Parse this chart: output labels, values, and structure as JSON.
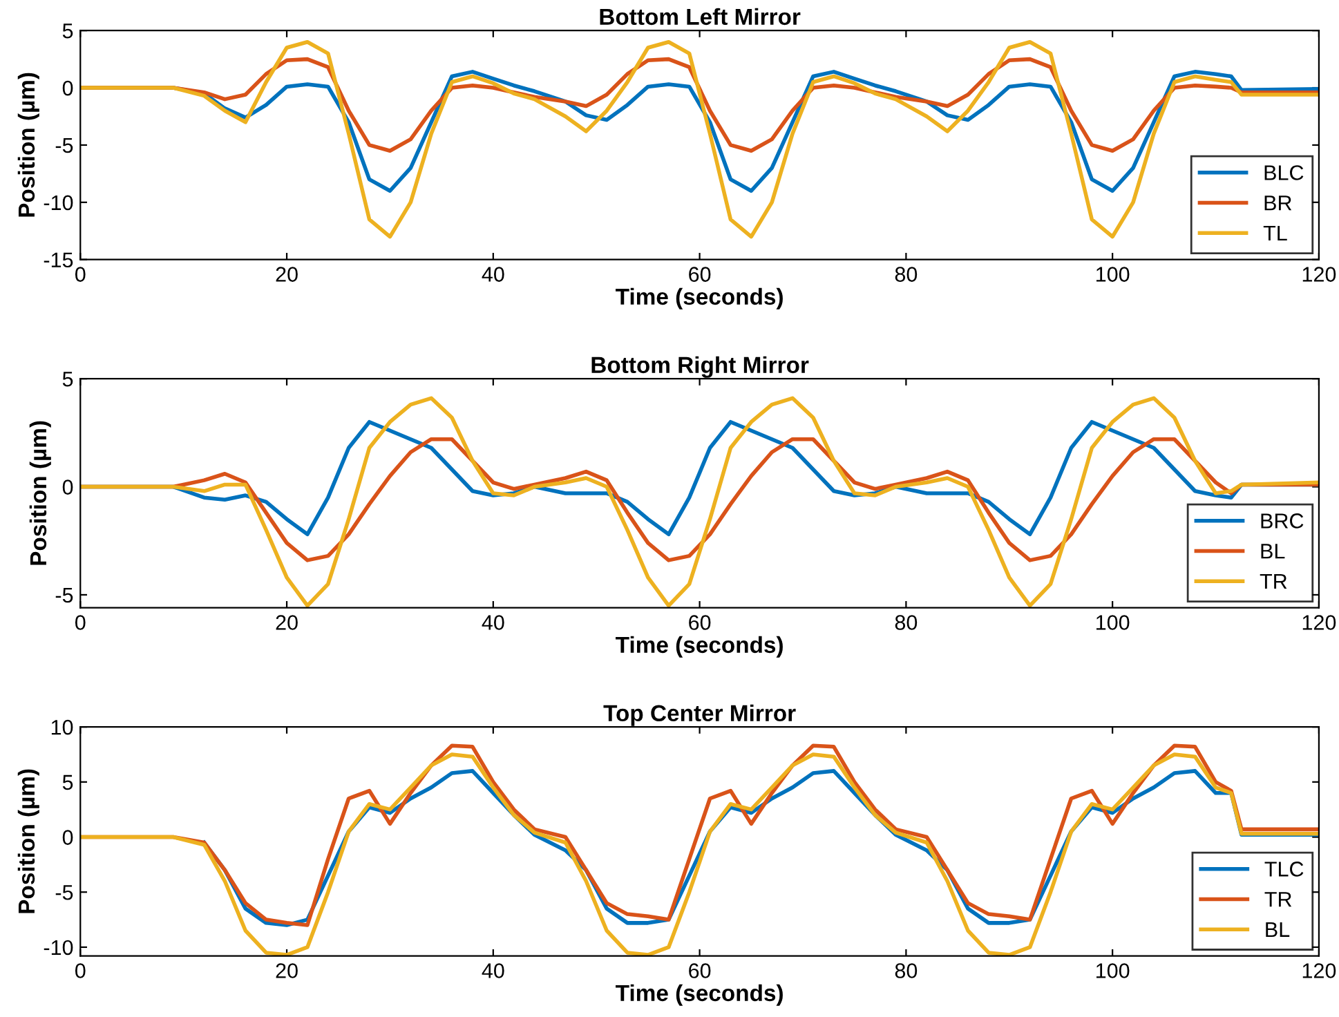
{
  "chart_data": [
    {
      "type": "line",
      "title": "Bottom Left Mirror",
      "xlabel": "Time (seconds)",
      "ylabel": "Position (µm)",
      "xlim": [
        0,
        120
      ],
      "xticks": [
        0,
        20,
        40,
        60,
        80,
        100,
        120
      ],
      "ylim": [
        -15,
        5
      ],
      "yticks": [
        -15,
        -10,
        -5,
        0,
        5
      ],
      "grid": false,
      "legend": "bottom right",
      "x": [
        0,
        9,
        12,
        14,
        16,
        18,
        20,
        22,
        24,
        26,
        28,
        30,
        32,
        34,
        36,
        38,
        40,
        42,
        44,
        47,
        49,
        51,
        53,
        55,
        57,
        59,
        61,
        63,
        65,
        67,
        69,
        71,
        73,
        75,
        77,
        79,
        82,
        84,
        86,
        88,
        90,
        92,
        94,
        96,
        98,
        100,
        102,
        104,
        106,
        108,
        110,
        111.5,
        112.5,
        120
      ],
      "series": [
        {
          "name": "BLC",
          "color": "#0072bd",
          "values": [
            0,
            0,
            -0.5,
            -1.8,
            -2.6,
            -1.5,
            0.1,
            0.3,
            0.1,
            -3,
            -8,
            -9,
            -7,
            -3,
            1,
            1.4,
            0.8,
            0.2,
            -0.3,
            -1.2,
            -2.4,
            -2.8,
            -1.5,
            0.1,
            0.3,
            0.1,
            -3,
            -8,
            -9,
            -7,
            -3,
            1,
            1.4,
            0.8,
            0.2,
            -0.3,
            -1.2,
            -2.4,
            -2.8,
            -1.5,
            0.1,
            0.3,
            0.1,
            -3,
            -8,
            -9,
            -7,
            -3,
            1,
            1.4,
            1.2,
            1.0,
            -0.2,
            -0.1
          ]
        },
        {
          "name": "BR",
          "color": "#d95319",
          "values": [
            0,
            0,
            -0.4,
            -1.0,
            -0.6,
            1.2,
            2.4,
            2.5,
            1.8,
            -2,
            -5,
            -5.5,
            -4.5,
            -2,
            0,
            0.2,
            0,
            -0.4,
            -0.8,
            -1.2,
            -1.6,
            -0.6,
            1.2,
            2.4,
            2.5,
            1.8,
            -2,
            -5,
            -5.5,
            -4.5,
            -2,
            0,
            0.2,
            0,
            -0.4,
            -0.8,
            -1.2,
            -1.6,
            -0.6,
            1.2,
            2.4,
            2.5,
            1.8,
            -2,
            -5,
            -5.5,
            -4.5,
            -2,
            0,
            0.2,
            0.1,
            0,
            -0.4,
            -0.4
          ]
        },
        {
          "name": "TL",
          "color": "#edb120",
          "values": [
            0,
            0,
            -0.7,
            -2,
            -3,
            0.5,
            3.5,
            4,
            3,
            -4,
            -11.5,
            -13,
            -10,
            -4,
            0.5,
            1,
            0.4,
            -0.5,
            -1,
            -2.5,
            -3.8,
            -2,
            0.5,
            3.5,
            4,
            3,
            -4,
            -11.5,
            -13,
            -10,
            -4,
            0.5,
            1,
            0.4,
            -0.5,
            -1,
            -2.5,
            -3.8,
            -2,
            0.5,
            3.5,
            4,
            3,
            -4,
            -11.5,
            -13,
            -10,
            -4,
            0.5,
            1,
            0.7,
            0.5,
            -0.6,
            -0.6
          ]
        }
      ]
    },
    {
      "type": "line",
      "title": "Bottom Right Mirror",
      "xlabel": "Time (seconds)",
      "ylabel": "Position (µm)",
      "xlim": [
        0,
        120
      ],
      "xticks": [
        0,
        20,
        40,
        60,
        80,
        100,
        120
      ],
      "ylim": [
        -5.6,
        5
      ],
      "yticks": [
        -5,
        0,
        5
      ],
      "grid": false,
      "legend": "bottom right",
      "x": [
        0,
        9,
        12,
        14,
        16,
        18,
        20,
        22,
        24,
        26,
        28,
        30,
        32,
        34,
        36,
        38,
        40,
        42,
        44,
        47,
        49,
        51,
        53,
        55,
        57,
        59,
        61,
        63,
        65,
        67,
        69,
        71,
        73,
        75,
        77,
        79,
        82,
        84,
        86,
        88,
        90,
        92,
        94,
        96,
        98,
        100,
        102,
        104,
        106,
        108,
        110,
        111.5,
        112.5,
        120
      ],
      "series": [
        {
          "name": "BRC",
          "color": "#0072bd",
          "values": [
            0,
            0,
            -0.5,
            -0.6,
            -0.4,
            -0.7,
            -1.5,
            -2.2,
            -0.5,
            1.8,
            3.0,
            2.6,
            2.2,
            1.8,
            0.8,
            -0.2,
            -0.4,
            -0.3,
            0,
            -0.3,
            -0.3,
            -0.3,
            -0.7,
            -1.5,
            -2.2,
            -0.5,
            1.8,
            3.0,
            2.6,
            2.2,
            1.8,
            0.8,
            -0.2,
            -0.4,
            -0.3,
            0,
            -0.3,
            -0.3,
            -0.3,
            -0.7,
            -1.5,
            -2.2,
            -0.5,
            1.8,
            3.0,
            2.6,
            2.2,
            1.8,
            0.8,
            -0.2,
            -0.4,
            -0.5,
            0.1,
            0.1
          ]
        },
        {
          "name": "BL",
          "color": "#d95319",
          "values": [
            0,
            0,
            0.3,
            0.6,
            0.2,
            -1.2,
            -2.6,
            -3.4,
            -3.2,
            -2.2,
            -0.8,
            0.5,
            1.6,
            2.2,
            2.2,
            1.2,
            0.2,
            -0.1,
            0.1,
            0.4,
            0.7,
            0.3,
            -1.2,
            -2.6,
            -3.4,
            -3.2,
            -2.2,
            -0.8,
            0.5,
            1.6,
            2.2,
            2.2,
            1.2,
            0.2,
            -0.1,
            0.1,
            0.4,
            0.7,
            0.3,
            -1.2,
            -2.6,
            -3.4,
            -3.2,
            -2.2,
            -0.8,
            0.5,
            1.6,
            2.2,
            2.2,
            1.2,
            0.2,
            -0.3,
            0.1,
            0.1
          ]
        },
        {
          "name": "TR",
          "color": "#edb120",
          "values": [
            0,
            0,
            -0.2,
            0.1,
            0.1,
            -2,
            -4.2,
            -5.5,
            -4.5,
            -1.5,
            1.8,
            3.0,
            3.8,
            4.1,
            3.2,
            1.2,
            -0.3,
            -0.4,
            0,
            0.2,
            0.4,
            0,
            -2,
            -4.2,
            -5.5,
            -4.5,
            -1.5,
            1.8,
            3.0,
            3.8,
            4.1,
            3.2,
            1.2,
            -0.3,
            -0.4,
            0,
            0.2,
            0.4,
            0,
            -2,
            -4.2,
            -5.5,
            -4.5,
            -1.5,
            1.8,
            3.0,
            3.8,
            4.1,
            3.2,
            1.2,
            -0.3,
            -0.2,
            0.1,
            0.2
          ]
        }
      ]
    },
    {
      "type": "line",
      "title": "Top Center Mirror",
      "xlabel": "Time (seconds)",
      "ylabel": "Position (µm)",
      "xlim": [
        0,
        120
      ],
      "xticks": [
        0,
        20,
        40,
        60,
        80,
        100,
        120
      ],
      "ylim": [
        -10.8,
        10
      ],
      "yticks": [
        -10,
        -5,
        0,
        5,
        10
      ],
      "grid": false,
      "legend": "bottom right",
      "x": [
        0,
        9,
        12,
        14,
        16,
        18,
        20,
        22,
        24,
        26,
        28,
        30,
        32,
        34,
        36,
        38,
        40,
        42,
        44,
        47,
        49,
        51,
        53,
        55,
        57,
        59,
        61,
        63,
        65,
        67,
        69,
        71,
        73,
        75,
        77,
        79,
        82,
        84,
        86,
        88,
        90,
        92,
        94,
        96,
        98,
        100,
        102,
        104,
        106,
        108,
        110,
        111.5,
        112.5,
        120
      ],
      "series": [
        {
          "name": "TLC",
          "color": "#0072bd",
          "values": [
            null,
            null,
            -0.5,
            -3,
            -6.5,
            -7.8,
            -8,
            -7.5,
            -3.5,
            0.5,
            2.7,
            2.2,
            3.5,
            4.5,
            5.8,
            6,
            4,
            2,
            0.2,
            -1.2,
            -3,
            -6.5,
            -7.8,
            -7.8,
            -7.5,
            -3.5,
            0.5,
            2.7,
            2.2,
            3.5,
            4.5,
            5.8,
            6,
            4,
            2,
            0.2,
            -1.2,
            -3,
            -6.5,
            -7.8,
            -7.8,
            -7.5,
            -3.5,
            0.5,
            2.7,
            2.2,
            3.5,
            4.5,
            5.8,
            6,
            4,
            4,
            0.2,
            0.2
          ]
        },
        {
          "name": "TR",
          "color": "#d95319",
          "values": [
            0,
            0,
            -0.5,
            -3,
            -6,
            -7.5,
            -7.8,
            -8,
            -2,
            3.5,
            4.2,
            1.2,
            4,
            6.5,
            8.3,
            8.2,
            5,
            2.5,
            0.7,
            0,
            -3,
            -6,
            -7,
            -7.2,
            -7.5,
            -2,
            3.5,
            4.2,
            1.2,
            4,
            6.5,
            8.3,
            8.2,
            5,
            2.5,
            0.7,
            0,
            -3,
            -6,
            -7,
            -7.2,
            -7.5,
            -2,
            3.5,
            4.2,
            1.2,
            4,
            6.5,
            8.3,
            8.2,
            5,
            4.2,
            0.7,
            0.7
          ]
        },
        {
          "name": "BL",
          "color": "#edb120",
          "values": [
            0,
            0,
            -0.7,
            -4,
            -8.5,
            -10.5,
            -10.7,
            -10,
            -5,
            0.5,
            3,
            2.5,
            4.5,
            6.5,
            7.5,
            7.3,
            4.5,
            2,
            0.4,
            -0.5,
            -4,
            -8.5,
            -10.5,
            -10.7,
            -10,
            -5,
            0.5,
            3,
            2.5,
            4.5,
            6.5,
            7.5,
            7.3,
            4.5,
            2,
            0.4,
            -0.5,
            -4,
            -8.5,
            -10.5,
            -10.7,
            -10,
            -5,
            0.5,
            3,
            2.5,
            4.5,
            6.5,
            7.5,
            7.3,
            4.5,
            4,
            0.3,
            0.3
          ]
        }
      ]
    }
  ]
}
